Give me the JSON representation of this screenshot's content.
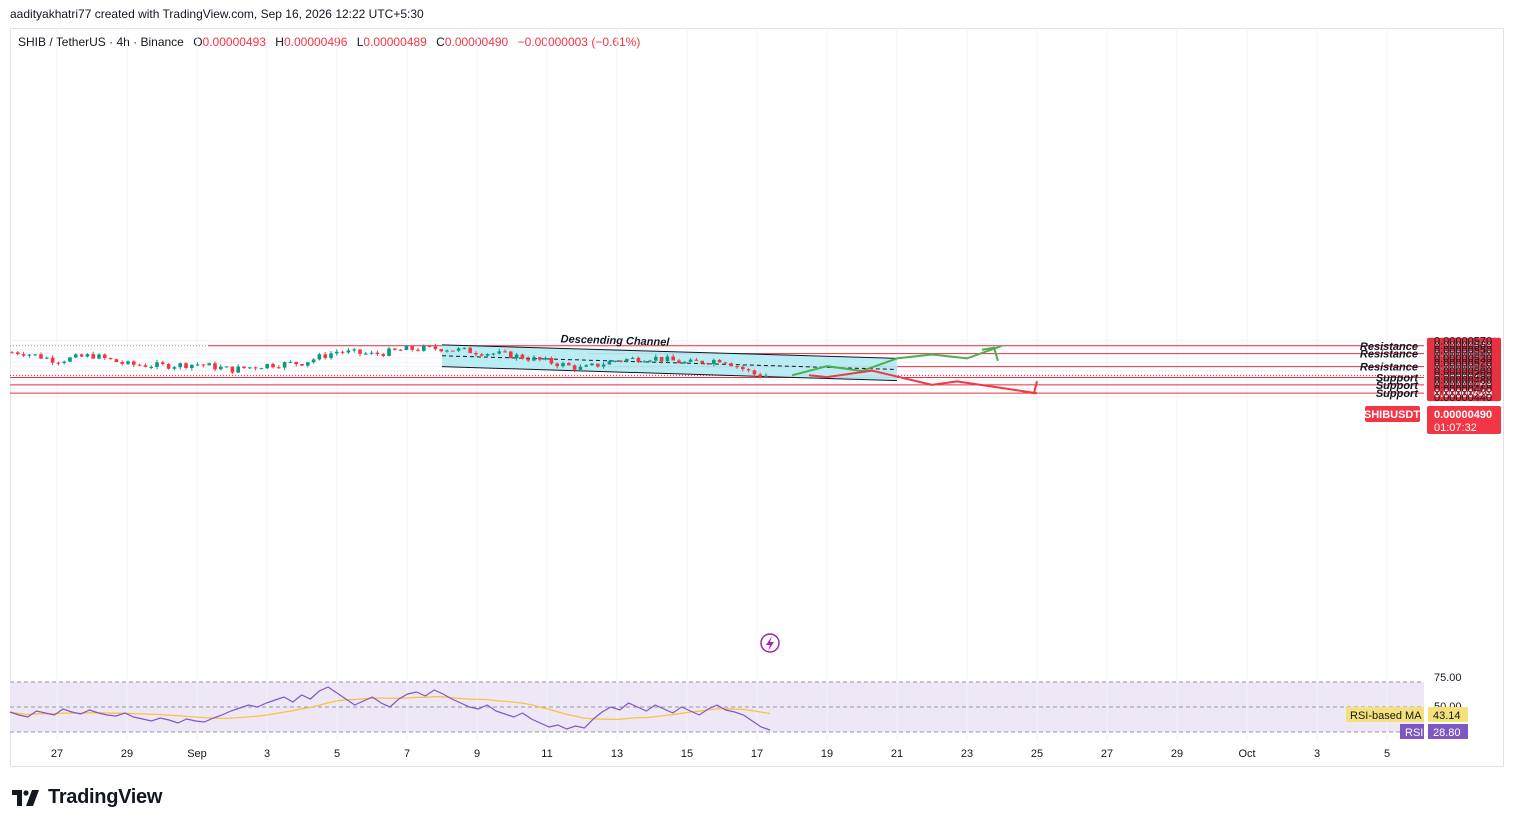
{
  "header": {
    "credit": "aadityakhatri77 created with TradingView.com, Sep 16, 2026 12:22 UTC+5:30"
  },
  "legend": {
    "symbol": "SHIB / TetherUS · 4h · Binance",
    "open_label": "O",
    "open": "0.00000493",
    "high_label": "H",
    "high": "0.00000496",
    "low_label": "L",
    "low": "0.00000489",
    "close_label": "C",
    "close": "0.00000490",
    "change": "−0.00000003 (−0.61%)"
  },
  "brand": {
    "name": "TradingView",
    "icon": "tradingview-logo-icon"
  },
  "colors": {
    "up": "#089981",
    "down": "#f23645",
    "level": "#e8313f",
    "channel_fill": "#b2ebf2",
    "projection_up": "#4caf50",
    "projection_down": "#f23645",
    "rsi_line": "#7e57c2",
    "rsi_ma": "#f5c542",
    "rsi_band": "#ede7f6"
  },
  "chart_data": [
    {
      "type": "candlestick",
      "interval": "4h",
      "x_axis": {
        "ticks": [
          "27",
          "29",
          "Sep",
          "3",
          "5",
          "7",
          "9",
          "11",
          "13",
          "15",
          "17",
          "19",
          "21",
          "23",
          "25",
          "27",
          "29",
          "Oct",
          "3",
          "5"
        ]
      },
      "y_axis": {
        "ticks": [
          "0.00000570",
          "0.00000560",
          "0.00000550",
          "0.00000540",
          "0.00000530",
          "0.00000520",
          "0.00000510",
          "0.00000500",
          "0.00000490",
          "0.00000480",
          "0.00000470",
          "0.00000460",
          "0.00000440"
        ],
        "range": [
          4.35e-06,
          5.75e-06
        ]
      },
      "price_trend": [
        [
          "2026-08-26",
          5.43
        ],
        [
          "2026-08-27",
          5.24
        ],
        [
          "2026-08-28",
          5.36
        ],
        [
          "2026-08-29",
          5.15
        ],
        [
          "2026-08-30",
          5.12
        ],
        [
          "2026-08-31",
          5.16
        ],
        [
          "2026-09-01",
          5.03
        ],
        [
          "2026-09-02",
          5.14
        ],
        [
          "2026-09-03",
          5.19
        ],
        [
          "2026-09-04",
          5.45
        ],
        [
          "2026-09-05",
          5.38
        ],
        [
          "2026-09-06",
          5.5
        ],
        [
          "2026-09-07",
          5.52
        ],
        [
          "2026-09-08",
          5.44
        ],
        [
          "2026-09-09",
          5.36
        ],
        [
          "2026-09-10",
          5.22
        ],
        [
          "2026-09-11",
          5.05
        ],
        [
          "2026-09-12",
          5.25
        ],
        [
          "2026-09-13",
          5.31
        ],
        [
          "2026-09-14",
          5.18
        ],
        [
          "2026-09-15",
          5.27
        ],
        [
          "2026-09-16",
          4.9
        ]
      ],
      "price_trend_unit": "1e-6 USDT",
      "channel": {
        "label": "Descending Channel",
        "upper": [
          [
            "2026-09-07",
            5.6
          ],
          [
            "2026-09-20",
            5.29
          ]
        ],
        "lower": [
          [
            "2026-09-07",
            5.1
          ],
          [
            "2026-09-20",
            4.78
          ]
        ],
        "mid": [
          [
            "2026-09-07",
            5.35
          ],
          [
            "2026-09-20",
            5.035
          ]
        ]
      },
      "levels": [
        {
          "label": "Resistance",
          "price": "0.00000558",
          "value": 5.58
        },
        {
          "label": "Resistance",
          "price": "0.00000540",
          "value": 5.4
        },
        {
          "label": "Resistance",
          "price": "0.00000510",
          "value": 5.1
        },
        {
          "label": "Support",
          "price": "0.00000485",
          "value": 4.85
        },
        {
          "label": "Support",
          "price": "0.00000468",
          "value": 4.68
        },
        {
          "label": "Support",
          "price": "0.00000449",
          "value": 4.49
        }
      ],
      "last_price": {
        "symbol": "SHIBUSDT",
        "price": "0.00000490",
        "countdown": "01:07:32",
        "value": 4.9
      },
      "projection_bullish": [
        [
          "2026-09-17",
          4.9
        ],
        [
          "2026-09-18",
          5.11
        ],
        [
          "2026-09-19",
          5.0
        ],
        [
          "2026-09-20",
          5.29
        ],
        [
          "2026-09-21",
          5.38
        ],
        [
          "2026-09-22",
          5.29
        ],
        [
          "2026-09-23",
          5.58
        ]
      ],
      "projection_bearish": [
        [
          "2026-09-18",
          4.9
        ],
        [
          "2026-09-18",
          4.86
        ],
        [
          "2026-09-19",
          5.01
        ],
        [
          "2026-09-21",
          4.68
        ],
        [
          "2026-09-22",
          4.76
        ],
        [
          "2026-09-24",
          4.49
        ]
      ]
    },
    {
      "type": "line",
      "title": "RSI",
      "y_ticks": [
        "75.00",
        "50.00"
      ],
      "series": [
        {
          "name": "RSI-based MA",
          "value": "43.14"
        },
        {
          "name": "RSI",
          "value": "28.80"
        }
      ]
    }
  ]
}
